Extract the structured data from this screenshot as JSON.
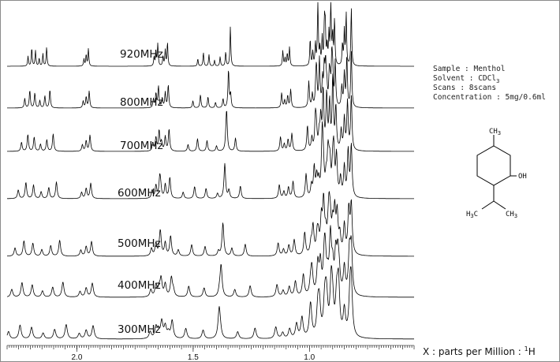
{
  "chart_data": {
    "type": "line",
    "title": "",
    "x_unit": "ppm",
    "xlim": [
      2.3,
      0.55
    ],
    "x_reversed": true,
    "x_ticks": [
      {
        "value": 2.0,
        "label": "2.0"
      },
      {
        "value": 1.5,
        "label": "1.5"
      },
      {
        "value": 1.0,
        "label": "1.0"
      }
    ],
    "xlabel_text": "X : parts per Million : ",
    "xlabel_nucleus_mass": "1",
    "xlabel_nucleus": "H",
    "series": [
      {
        "name": "920MHz"
      },
      {
        "name": "800MHz"
      },
      {
        "name": "700MHz"
      },
      {
        "name": "600MHz"
      },
      {
        "name": "500MHz"
      },
      {
        "name": "400MHz"
      },
      {
        "name": "300MHz"
      }
    ],
    "signals_ppm": [
      2.17,
      1.96,
      1.66,
      1.62,
      1.42,
      1.38,
      1.1,
      0.98,
      0.95,
      0.92,
      0.9,
      0.85,
      0.8
    ]
  },
  "sample_info": {
    "sample": "Sample : Menthol",
    "solvent": "Solvent : CDCl",
    "solvent_sub": "3",
    "scans": "Scans : 8scans",
    "concentration": "Concentration : 5mg/0.6ml"
  },
  "structure": {
    "ch3_top": "CH",
    "ch3_top_sub": "3",
    "oh": "OH",
    "h3c_left": "H",
    "h3c_left_sub": "3",
    "h3c_left_c": "C",
    "ch3_right": "CH",
    "ch3_right_sub": "3"
  }
}
